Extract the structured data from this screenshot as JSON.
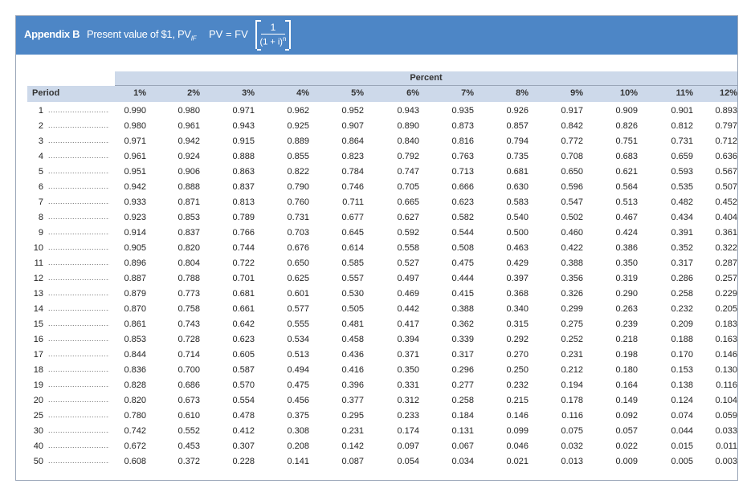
{
  "header": {
    "appendix": "Appendix B",
    "subtitle": "Present value of $1, PV",
    "subscript": "IF",
    "formula_lhs": "PV = FV",
    "formula_num": "1",
    "formula_den": "(1 + i)",
    "formula_exp": "n"
  },
  "table": {
    "group_label": "Percent",
    "period_label": "Period",
    "columns": [
      "1%",
      "2%",
      "3%",
      "4%",
      "5%",
      "6%",
      "7%",
      "8%",
      "9%",
      "10%",
      "11%",
      "12%"
    ],
    "dots": "..............................",
    "rows": [
      {
        "period": "1",
        "values": [
          "0.990",
          "0.980",
          "0.971",
          "0.962",
          "0.952",
          "0.943",
          "0.935",
          "0.926",
          "0.917",
          "0.909",
          "0.901",
          "0.893"
        ]
      },
      {
        "period": "2",
        "values": [
          "0.980",
          "0.961",
          "0.943",
          "0.925",
          "0.907",
          "0.890",
          "0.873",
          "0.857",
          "0.842",
          "0.826",
          "0.812",
          "0.797"
        ]
      },
      {
        "period": "3",
        "values": [
          "0.971",
          "0.942",
          "0.915",
          "0.889",
          "0.864",
          "0.840",
          "0.816",
          "0.794",
          "0.772",
          "0.751",
          "0.731",
          "0.712"
        ]
      },
      {
        "period": "4",
        "values": [
          "0.961",
          "0.924",
          "0.888",
          "0.855",
          "0.823",
          "0.792",
          "0.763",
          "0.735",
          "0.708",
          "0.683",
          "0.659",
          "0.636"
        ]
      },
      {
        "period": "5",
        "values": [
          "0.951",
          "0.906",
          "0.863",
          "0.822",
          "0.784",
          "0.747",
          "0.713",
          "0.681",
          "0.650",
          "0.621",
          "0.593",
          "0.567"
        ]
      },
      {
        "period": "6",
        "values": [
          "0.942",
          "0.888",
          "0.837",
          "0.790",
          "0.746",
          "0.705",
          "0.666",
          "0.630",
          "0.596",
          "0.564",
          "0.535",
          "0.507"
        ]
      },
      {
        "period": "7",
        "values": [
          "0.933",
          "0.871",
          "0.813",
          "0.760",
          "0.711",
          "0.665",
          "0.623",
          "0.583",
          "0.547",
          "0.513",
          "0.482",
          "0.452"
        ]
      },
      {
        "period": "8",
        "values": [
          "0.923",
          "0.853",
          "0.789",
          "0.731",
          "0.677",
          "0.627",
          "0.582",
          "0.540",
          "0.502",
          "0.467",
          "0.434",
          "0.404"
        ]
      },
      {
        "period": "9",
        "values": [
          "0.914",
          "0.837",
          "0.766",
          "0.703",
          "0.645",
          "0.592",
          "0.544",
          "0.500",
          "0.460",
          "0.424",
          "0.391",
          "0.361"
        ]
      },
      {
        "period": "10",
        "values": [
          "0.905",
          "0.820",
          "0.744",
          "0.676",
          "0.614",
          "0.558",
          "0.508",
          "0.463",
          "0.422",
          "0.386",
          "0.352",
          "0.322"
        ]
      },
      {
        "period": "11",
        "values": [
          "0.896",
          "0.804",
          "0.722",
          "0.650",
          "0.585",
          "0.527",
          "0.475",
          "0.429",
          "0.388",
          "0.350",
          "0.317",
          "0.287"
        ]
      },
      {
        "period": "12",
        "values": [
          "0.887",
          "0.788",
          "0.701",
          "0.625",
          "0.557",
          "0.497",
          "0.444",
          "0.397",
          "0.356",
          "0.319",
          "0.286",
          "0.257"
        ]
      },
      {
        "period": "13",
        "values": [
          "0.879",
          "0.773",
          "0.681",
          "0.601",
          "0.530",
          "0.469",
          "0.415",
          "0.368",
          "0.326",
          "0.290",
          "0.258",
          "0.229"
        ]
      },
      {
        "period": "14",
        "values": [
          "0.870",
          "0.758",
          "0.661",
          "0.577",
          "0.505",
          "0.442",
          "0.388",
          "0.340",
          "0.299",
          "0.263",
          "0.232",
          "0.205"
        ]
      },
      {
        "period": "15",
        "values": [
          "0.861",
          "0.743",
          "0.642",
          "0.555",
          "0.481",
          "0.417",
          "0.362",
          "0.315",
          "0.275",
          "0.239",
          "0.209",
          "0.183"
        ]
      },
      {
        "period": "16",
        "values": [
          "0.853",
          "0.728",
          "0.623",
          "0.534",
          "0.458",
          "0.394",
          "0.339",
          "0.292",
          "0.252",
          "0.218",
          "0.188",
          "0.163"
        ]
      },
      {
        "period": "17",
        "values": [
          "0.844",
          "0.714",
          "0.605",
          "0.513",
          "0.436",
          "0.371",
          "0.317",
          "0.270",
          "0.231",
          "0.198",
          "0.170",
          "0.146"
        ]
      },
      {
        "period": "18",
        "values": [
          "0.836",
          "0.700",
          "0.587",
          "0.494",
          "0.416",
          "0.350",
          "0.296",
          "0.250",
          "0.212",
          "0.180",
          "0.153",
          "0.130"
        ]
      },
      {
        "period": "19",
        "values": [
          "0.828",
          "0.686",
          "0.570",
          "0.475",
          "0.396",
          "0.331",
          "0.277",
          "0.232",
          "0.194",
          "0.164",
          "0.138",
          "0.116"
        ]
      },
      {
        "period": "20",
        "values": [
          "0.820",
          "0.673",
          "0.554",
          "0.456",
          "0.377",
          "0.312",
          "0.258",
          "0.215",
          "0.178",
          "0.149",
          "0.124",
          "0.104"
        ]
      },
      {
        "period": "25",
        "values": [
          "0.780",
          "0.610",
          "0.478",
          "0.375",
          "0.295",
          "0.233",
          "0.184",
          "0.146",
          "0.116",
          "0.092",
          "0.074",
          "0.059"
        ]
      },
      {
        "period": "30",
        "values": [
          "0.742",
          "0.552",
          "0.412",
          "0.308",
          "0.231",
          "0.174",
          "0.131",
          "0.099",
          "0.075",
          "0.057",
          "0.044",
          "0.033"
        ]
      },
      {
        "period": "40",
        "values": [
          "0.672",
          "0.453",
          "0.307",
          "0.208",
          "0.142",
          "0.097",
          "0.067",
          "0.046",
          "0.032",
          "0.022",
          "0.015",
          "0.011"
        ]
      },
      {
        "period": "50",
        "values": [
          "0.608",
          "0.372",
          "0.228",
          "0.141",
          "0.087",
          "0.054",
          "0.034",
          "0.021",
          "0.013",
          "0.009",
          "0.005",
          "0.003"
        ]
      }
    ]
  },
  "colors": {
    "header_bg": "#4d86c6",
    "table_head_bg": "#cdd9ea"
  }
}
